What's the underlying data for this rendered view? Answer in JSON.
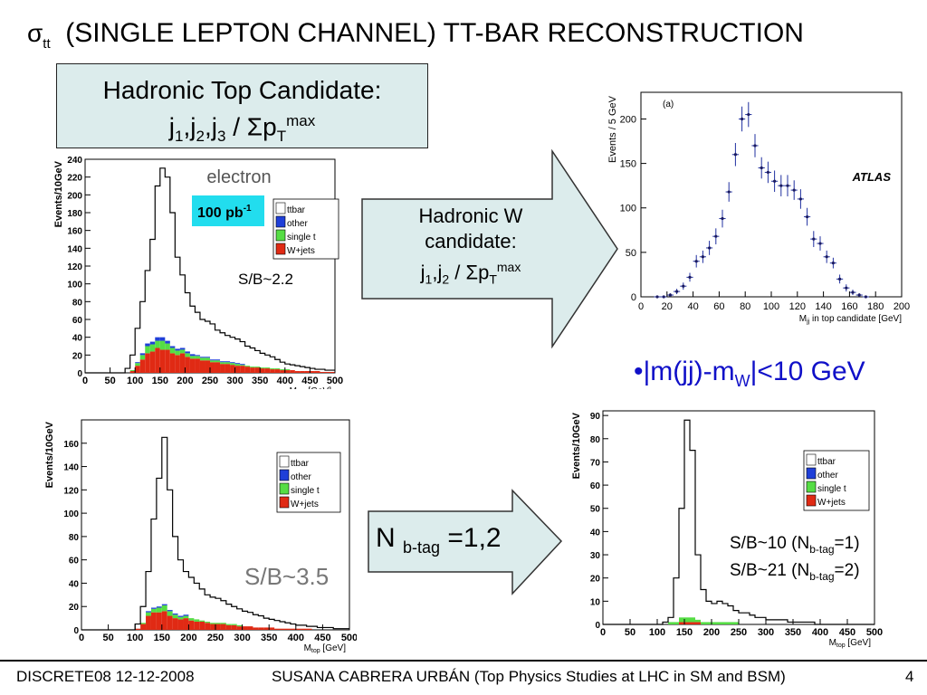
{
  "title": {
    "sigma": "σ",
    "sub": "tt",
    "text": "(SINGLE LEPTON CHANNEL) TT-BAR RECONSTRUCTION"
  },
  "top_box": {
    "line1": "Hadronic Top Candidate:",
    "j": "j",
    "s1": "1",
    "s2": "2",
    "s3": "3",
    "sep": ",",
    "slash": " / Σp",
    "T": "T",
    "max": "max"
  },
  "arrow1": {
    "line1": "Hadronic W",
    "line2": "candidate:",
    "j": "j",
    "s1": "1",
    "s2": "2",
    "sep": ",",
    "slash": " / Σp",
    "T": "T",
    "max": "max",
    "fill": "#dcecec"
  },
  "arrow2": {
    "prefix": "N ",
    "sub": "b-tag",
    "suffix": " =1,2",
    "fill": "#dcecec"
  },
  "cut_label": {
    "bullet": "•",
    "text1": "|m(jj)-m",
    "sub": "W",
    "text2": "|<10 GeV",
    "color": "#1010c8"
  },
  "sb_labels": {
    "top_left": "S/B~2.2",
    "bottom_left": "S/B~3.5",
    "bottom_right_1a": "S/B~10 (N",
    "bottom_right_1sub": "b-tag",
    "bottom_right_1b": "=1)",
    "bottom_right_2a": "S/B~21 (N",
    "bottom_right_2sub": "b-tag",
    "bottom_right_2b": "=2)"
  },
  "footer": {
    "left": "DISCRETE08 12-12-2008",
    "center": "SUSANA CABRERA URBÁN (Top Physics Studies at LHC in SM and BSM)",
    "page": "4"
  },
  "colors": {
    "ttbar": "#ffffff",
    "other": "#1f3fd8",
    "single_t": "#55dd44",
    "wjets": "#e02a14",
    "lumi_box": "#22ddee"
  },
  "chart_data": [
    {
      "type": "area",
      "xlabel": "M",
      "xlabel_sub": "top",
      "xlabel_unit": " [GeV]",
      "ylabel": "Events/10GeV",
      "xlim": [
        0,
        500
      ],
      "ylim": [
        0,
        240
      ],
      "xticks": [
        0,
        50,
        100,
        150,
        200,
        250,
        300,
        350,
        400,
        450,
        500
      ],
      "yticks": [
        0,
        20,
        40,
        60,
        80,
        100,
        120,
        140,
        160,
        180,
        200,
        220,
        240
      ],
      "channel_label": "electron",
      "lumi_label": "100 pb",
      "lumi_sup": "-1",
      "legend": [
        "ttbar",
        "other",
        "single t",
        "W+jets"
      ],
      "x": [
        5,
        15,
        25,
        35,
        45,
        55,
        65,
        75,
        85,
        95,
        105,
        115,
        125,
        135,
        145,
        155,
        165,
        175,
        185,
        195,
        205,
        215,
        225,
        235,
        245,
        255,
        265,
        275,
        285,
        295,
        305,
        315,
        325,
        335,
        345,
        355,
        365,
        375,
        385,
        395,
        405,
        415,
        425,
        435,
        445,
        455,
        465,
        475,
        485,
        495
      ],
      "total": [
        0,
        0,
        0,
        0,
        0,
        0,
        0,
        0,
        5,
        20,
        50,
        80,
        115,
        150,
        210,
        230,
        220,
        180,
        130,
        110,
        90,
        75,
        68,
        60,
        58,
        55,
        48,
        45,
        42,
        40,
        38,
        35,
        30,
        28,
        25,
        22,
        20,
        18,
        15,
        12,
        10,
        9,
        8,
        7,
        6,
        5,
        4,
        4,
        3,
        3
      ],
      "wjets": [
        0,
        0,
        0,
        0,
        0,
        0,
        0,
        0,
        0,
        2,
        8,
        15,
        22,
        24,
        28,
        26,
        26,
        22,
        20,
        22,
        18,
        16,
        16,
        14,
        14,
        12,
        12,
        10,
        10,
        9,
        8,
        8,
        7,
        6,
        6,
        5,
        5,
        4,
        4,
        3,
        3,
        3,
        2,
        2,
        2,
        2,
        2,
        1,
        1,
        1
      ],
      "single_t": [
        0,
        0,
        0,
        0,
        0,
        0,
        0,
        0,
        0,
        1,
        3,
        5,
        8,
        8,
        8,
        10,
        7,
        6,
        5,
        4,
        4,
        3,
        3,
        3,
        3,
        2,
        2,
        2,
        2,
        2,
        2,
        1,
        1,
        1,
        1,
        1,
        1,
        1,
        1,
        1,
        1,
        0,
        0,
        0,
        0,
        0,
        0,
        0,
        0,
        0
      ],
      "other": [
        0,
        0,
        0,
        0,
        0,
        0,
        0,
        0,
        0,
        0,
        1,
        2,
        3,
        3,
        4,
        4,
        3,
        2,
        2,
        2,
        2,
        2,
        1,
        1,
        1,
        1,
        1,
        1,
        1,
        1,
        1,
        1,
        0,
        0,
        0,
        0,
        0,
        0,
        0,
        0,
        0,
        0,
        0,
        0,
        0,
        0,
        0,
        0,
        0,
        0
      ]
    },
    {
      "type": "scatter",
      "xlabel": "M",
      "xlabel_sub": "jj",
      "xlabel_unit": " in top candidate [GeV]",
      "ylabel": "Events / 5 GeV",
      "panel_label": "(a)",
      "experiment": "ATLAS",
      "xlim": [
        0,
        200
      ],
      "ylim": [
        0,
        230
      ],
      "xticks": [
        0,
        20,
        40,
        60,
        80,
        100,
        120,
        140,
        160,
        180,
        200
      ],
      "yticks": [
        0,
        50,
        100,
        150,
        200
      ],
      "x": [
        12.5,
        17.5,
        22.5,
        27.5,
        32.5,
        37.5,
        42.5,
        47.5,
        52.5,
        57.5,
        62.5,
        67.5,
        72.5,
        77.5,
        82.5,
        87.5,
        92.5,
        97.5,
        102.5,
        107.5,
        112.5,
        117.5,
        122.5,
        127.5,
        132.5,
        137.5,
        142.5,
        147.5,
        152.5,
        157.5,
        162.5,
        167.5,
        172.5
      ],
      "y": [
        0,
        0,
        2,
        6,
        12,
        22,
        40,
        45,
        55,
        68,
        88,
        118,
        160,
        200,
        205,
        170,
        145,
        140,
        130,
        125,
        125,
        120,
        110,
        90,
        65,
        60,
        45,
        38,
        20,
        10,
        5,
        2,
        0
      ],
      "err": [
        1,
        1,
        2,
        3,
        4,
        5,
        7,
        7,
        8,
        9,
        10,
        11,
        13,
        14,
        14,
        13,
        12,
        12,
        12,
        12,
        12,
        11,
        11,
        10,
        9,
        8,
        7,
        6,
        5,
        4,
        3,
        2,
        1
      ]
    },
    {
      "type": "area",
      "xlabel": "M",
      "xlabel_sub": "top",
      "xlabel_unit": " [GeV]",
      "ylabel": "Events/10GeV",
      "xlim": [
        0,
        500
      ],
      "ylim": [
        0,
        180
      ],
      "xticks": [
        0,
        50,
        100,
        150,
        200,
        250,
        300,
        350,
        400,
        450,
        500
      ],
      "yticks": [
        0,
        20,
        40,
        60,
        80,
        100,
        120,
        140,
        160
      ],
      "legend": [
        "ttbar",
        "other",
        "single t",
        "W+jets"
      ],
      "x": [
        5,
        15,
        25,
        35,
        45,
        55,
        65,
        75,
        85,
        95,
        105,
        115,
        125,
        135,
        145,
        155,
        165,
        175,
        185,
        195,
        205,
        215,
        225,
        235,
        245,
        255,
        265,
        275,
        285,
        295,
        305,
        315,
        325,
        335,
        345,
        355,
        365,
        375,
        385,
        395,
        405,
        415,
        425,
        435,
        445,
        455,
        465,
        475,
        485,
        495
      ],
      "total": [
        0,
        0,
        0,
        0,
        0,
        0,
        0,
        0,
        0,
        0,
        5,
        20,
        50,
        95,
        130,
        165,
        120,
        80,
        60,
        50,
        45,
        40,
        35,
        30,
        28,
        27,
        25,
        22,
        20,
        18,
        16,
        15,
        13,
        12,
        10,
        9,
        8,
        7,
        6,
        5,
        4,
        4,
        3,
        3,
        2,
        2,
        2,
        1,
        1,
        1
      ],
      "wjets": [
        0,
        0,
        0,
        0,
        0,
        0,
        0,
        0,
        0,
        0,
        1,
        5,
        12,
        15,
        15,
        16,
        12,
        10,
        9,
        10,
        8,
        7,
        7,
        6,
        5,
        5,
        5,
        4,
        4,
        3,
        3,
        3,
        2,
        2,
        2,
        2,
        1,
        1,
        1,
        1,
        1,
        1,
        1,
        0,
        0,
        0,
        0,
        0,
        0,
        0
      ],
      "single_t": [
        0,
        0,
        0,
        0,
        0,
        0,
        0,
        0,
        0,
        0,
        0,
        1,
        3,
        3,
        4,
        5,
        4,
        3,
        2,
        2,
        2,
        2,
        1,
        1,
        1,
        1,
        1,
        1,
        1,
        1,
        0,
        0,
        0,
        0,
        0,
        0,
        0,
        0,
        0,
        0,
        0,
        0,
        0,
        0,
        0,
        0,
        0,
        0,
        0,
        0
      ],
      "other": [
        0,
        0,
        0,
        0,
        0,
        0,
        0,
        0,
        0,
        0,
        0,
        0,
        1,
        1,
        1,
        1,
        1,
        1,
        1,
        1,
        0,
        0,
        0,
        0,
        0,
        0,
        0,
        0,
        0,
        0,
        0,
        0,
        0,
        0,
        0,
        0,
        0,
        0,
        0,
        0,
        0,
        0,
        0,
        0,
        0,
        0,
        0,
        0,
        0,
        0
      ]
    },
    {
      "type": "area",
      "xlabel": "M",
      "xlabel_sub": "top",
      "xlabel_unit": " [GeV]",
      "ylabel": "Events/10GeV",
      "xlim": [
        0,
        500
      ],
      "ylim": [
        0,
        92
      ],
      "xticks": [
        0,
        50,
        100,
        150,
        200,
        250,
        300,
        350,
        400,
        450,
        500
      ],
      "yticks": [
        0,
        10,
        20,
        30,
        40,
        50,
        60,
        70,
        80,
        90
      ],
      "legend": [
        "ttbar",
        "other",
        "single t",
        "W+jets"
      ],
      "x": [
        5,
        15,
        25,
        35,
        45,
        55,
        65,
        75,
        85,
        95,
        105,
        115,
        125,
        135,
        145,
        155,
        165,
        175,
        185,
        195,
        205,
        215,
        225,
        235,
        245,
        255,
        265,
        275,
        285,
        295,
        305,
        315,
        325,
        335,
        345,
        355,
        365,
        375,
        385,
        395,
        405,
        415,
        425,
        435,
        445,
        455,
        465,
        475,
        485,
        495
      ],
      "total": [
        0,
        0,
        0,
        0,
        0,
        0,
        0,
        0,
        0,
        0,
        0,
        1,
        3,
        20,
        50,
        88,
        75,
        30,
        15,
        10,
        9,
        10,
        9,
        8,
        6,
        5,
        5,
        4,
        3,
        3,
        2,
        2,
        2,
        2,
        1,
        1,
        1,
        1,
        1,
        0,
        0,
        0,
        0,
        0,
        0,
        0,
        0,
        0,
        0,
        0
      ],
      "wjets": [
        0,
        0,
        0,
        0,
        0,
        0,
        0,
        0,
        0,
        0,
        0,
        0,
        0,
        0,
        1,
        1,
        1,
        1,
        0,
        0,
        0,
        0,
        0,
        0,
        0,
        0,
        0,
        0,
        0,
        0,
        0,
        0,
        0,
        0,
        0,
        0,
        0,
        0,
        0,
        0,
        0,
        0,
        0,
        0,
        0,
        0,
        0,
        0,
        0,
        0
      ],
      "single_t": [
        0,
        0,
        0,
        0,
        0,
        0,
        0,
        0,
        0,
        0,
        0,
        0,
        1,
        1,
        2,
        2,
        2,
        1,
        1,
        1,
        1,
        1,
        1,
        1,
        1,
        0,
        0,
        0,
        0,
        0,
        0,
        0,
        0,
        0,
        0,
        0,
        0,
        0,
        0,
        0,
        0,
        0,
        0,
        0,
        0,
        0,
        0,
        0,
        0,
        0
      ],
      "other": [
        0,
        0,
        0,
        0,
        0,
        0,
        0,
        0,
        0,
        0,
        0,
        0,
        0,
        0,
        0,
        0,
        0,
        0,
        0,
        0,
        0,
        0,
        0,
        0,
        0,
        0,
        0,
        0,
        0,
        0,
        0,
        0,
        0,
        0,
        0,
        0,
        0,
        0,
        0,
        0,
        0,
        0,
        0,
        0,
        0,
        0,
        0,
        0,
        0,
        0
      ]
    }
  ]
}
